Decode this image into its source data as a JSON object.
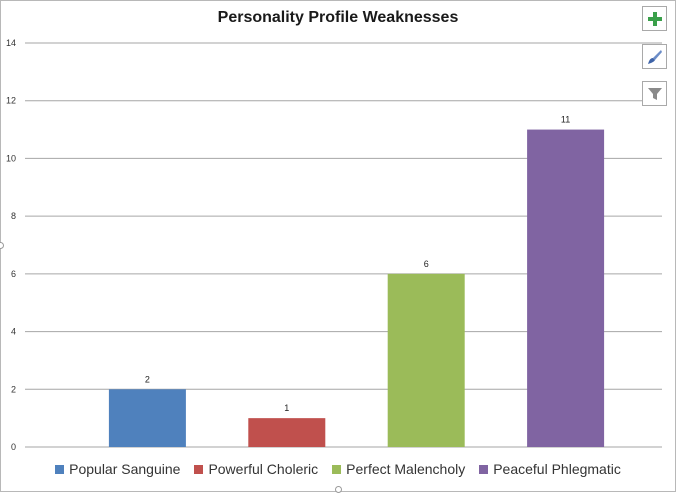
{
  "chart_data": {
    "type": "bar",
    "title": "Personality Profile Weaknesses",
    "categories": [
      "Popular Sanguine",
      "Powerful Choleric",
      "Perfect Malencholy",
      "Peaceful Phlegmatic"
    ],
    "values": [
      2,
      1,
      6,
      11
    ],
    "colors": [
      "#4f81bd",
      "#c0504d",
      "#9bbb59",
      "#8064a2"
    ],
    "ylim": [
      0,
      14
    ],
    "yticks": [
      0,
      2,
      4,
      6,
      8,
      10,
      12,
      14
    ],
    "xlabel": "",
    "ylabel": "",
    "grid": true,
    "legend": "bottom"
  },
  "toolbar": {
    "add_icon": "plus-icon",
    "style_icon": "paintbrush-icon",
    "filter_icon": "funnel-icon"
  }
}
